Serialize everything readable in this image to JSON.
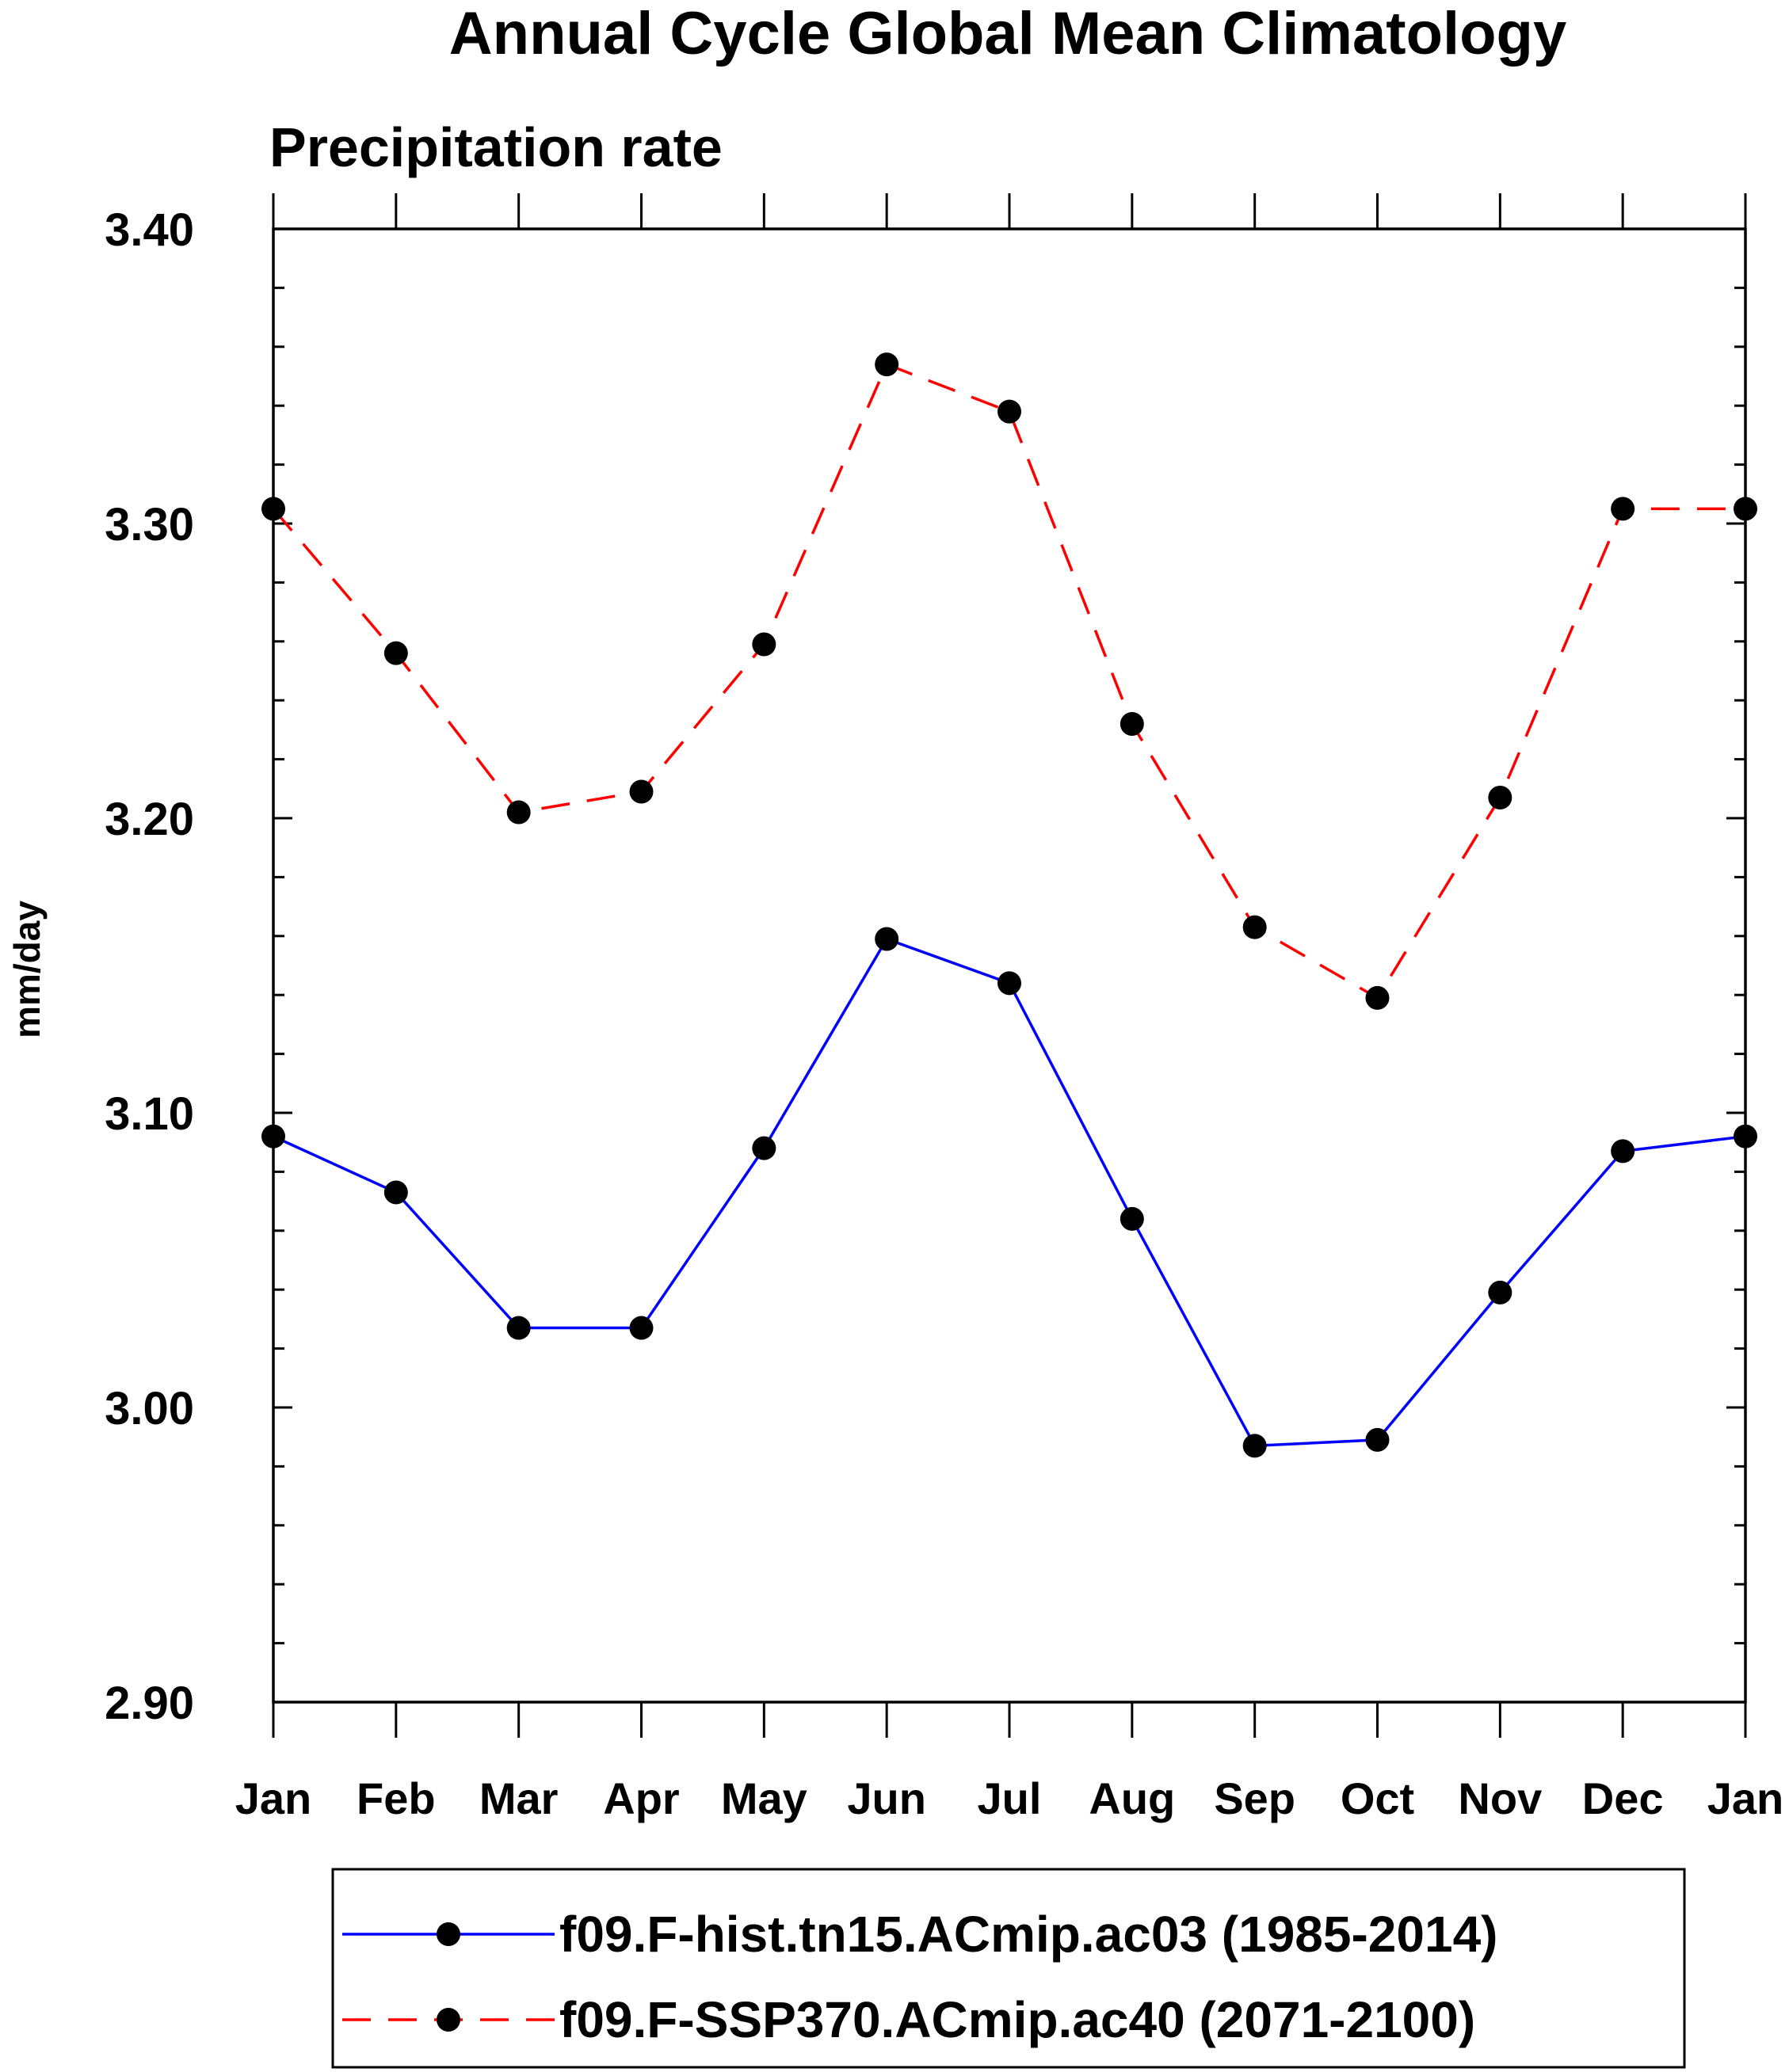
{
  "chart_data": {
    "type": "line",
    "title": "Annual Cycle Global Mean Climatology",
    "subtitle": "Precipitation rate",
    "xlabel": "",
    "ylabel": "mm/day",
    "categories": [
      "Jan",
      "Feb",
      "Mar",
      "Apr",
      "May",
      "Jun",
      "Jul",
      "Aug",
      "Sep",
      "Oct",
      "Nov",
      "Dec",
      "Jan"
    ],
    "ylim": [
      2.9,
      3.4
    ],
    "yticks": [
      2.9,
      3.0,
      3.1,
      3.2,
      3.3,
      3.4
    ],
    "ytick_labels": [
      "2.90",
      "3.00",
      "3.10",
      "3.20",
      "3.30",
      "3.40"
    ],
    "grid": false,
    "legend_position": "bottom",
    "series": [
      {
        "name": "f09.F-hist.tn15.ACmip.ac03 (1985-2014)",
        "color": "#0000ff",
        "line_style": "solid",
        "marker": "circle",
        "values": [
          3.092,
          3.073,
          3.027,
          3.027,
          3.088,
          3.159,
          3.144,
          3.064,
          2.987,
          2.989,
          3.039,
          3.087,
          3.092
        ]
      },
      {
        "name": "f09.F-SSP370.ACmip.ac40 (2071-2100)",
        "color": "#ff0000",
        "line_style": "dashed",
        "marker": "circle",
        "values": [
          3.305,
          3.256,
          3.202,
          3.209,
          3.259,
          3.354,
          3.338,
          3.232,
          3.163,
          3.139,
          3.207,
          3.305,
          3.305
        ]
      }
    ]
  }
}
